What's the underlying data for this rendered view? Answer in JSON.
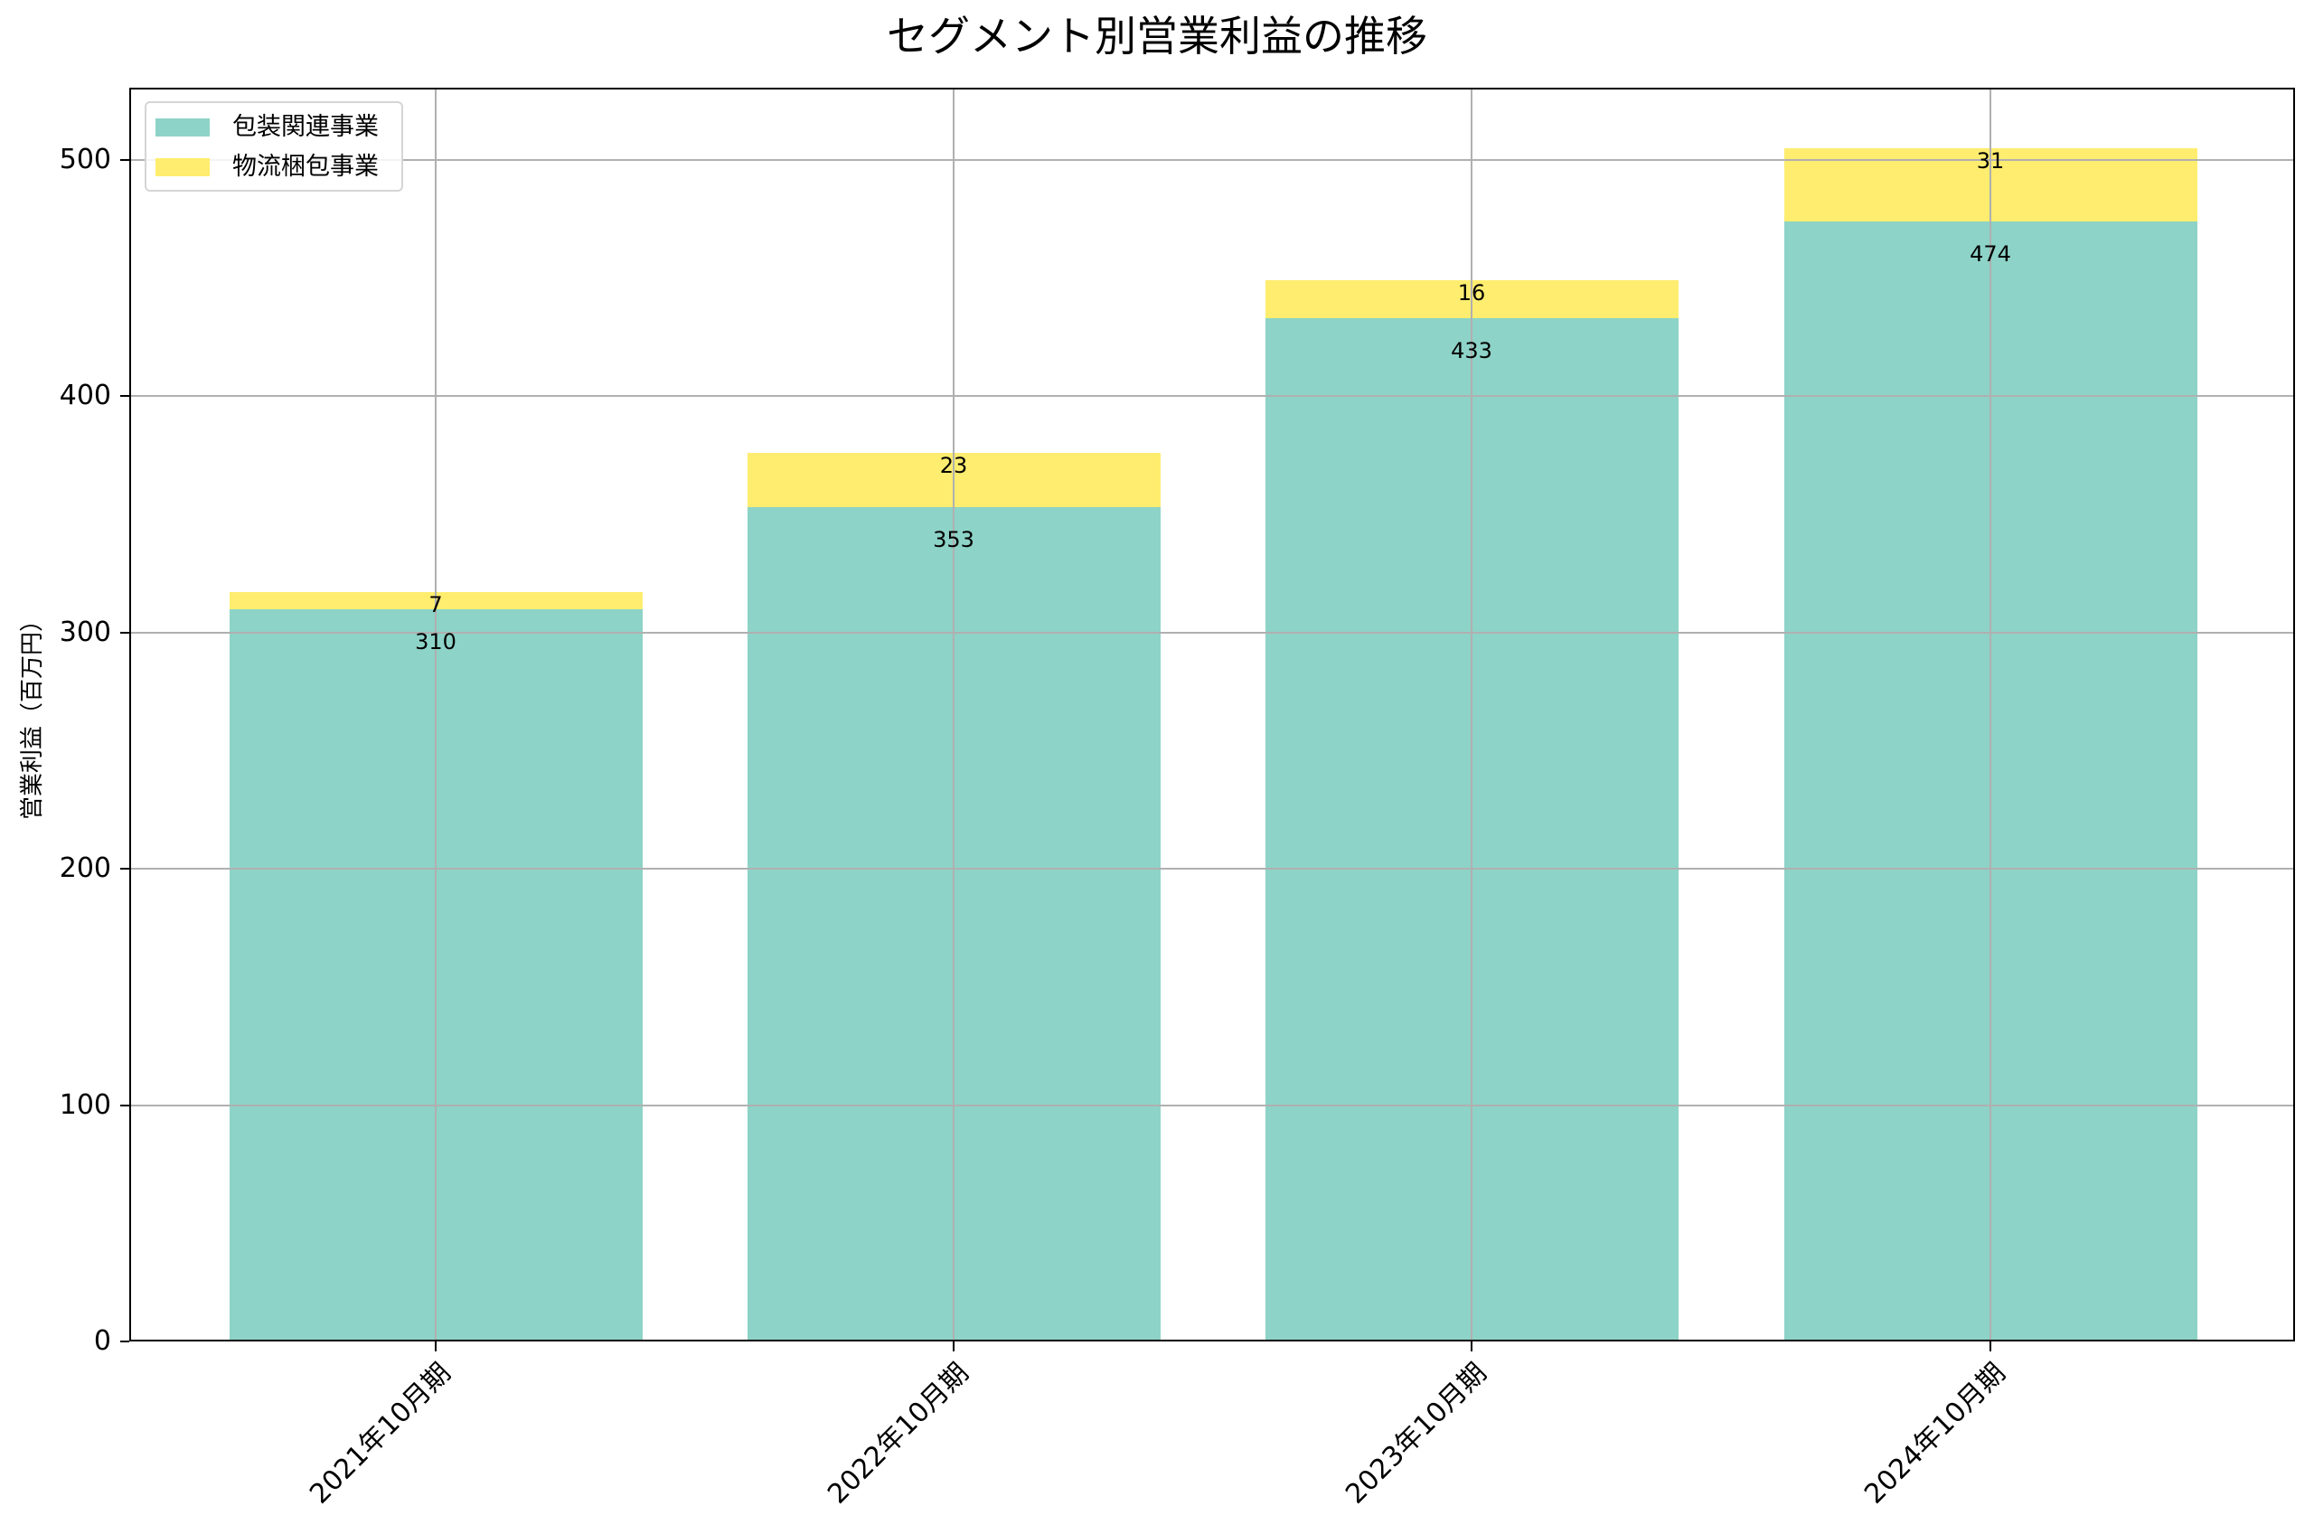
{
  "chart_data": {
    "type": "bar",
    "stacked": true,
    "title": "セグメント別営業利益の推移",
    "xlabel": "",
    "ylabel": "営業利益（百万円）",
    "ylim": [
      0,
      530
    ],
    "yticks": [
      0,
      100,
      200,
      300,
      400,
      500
    ],
    "grid": true,
    "legend_position": "upper left",
    "categories": [
      "2021年10月期",
      "2022年10月期",
      "2023年10月期",
      "2024年10月期"
    ],
    "series": [
      {
        "name": "包装関連事業",
        "color": "#8dd3c7",
        "values": [
          310,
          353,
          433,
          474
        ]
      },
      {
        "name": "物流梱包事業",
        "color": "#ffed6f",
        "values": [
          7,
          23,
          16,
          31
        ]
      }
    ]
  },
  "labels": {
    "title": "セグメント別営業利益の推移",
    "ylabel": "営業利益（百万円）",
    "yticks": [
      "0",
      "100",
      "200",
      "300",
      "400",
      "500"
    ],
    "xticks": [
      "2021年10月期",
      "2022年10月期",
      "2023年10月期",
      "2024年10月期"
    ],
    "legend": [
      "包装関連事業",
      "物流梱包事業"
    ],
    "bar_labels_bottom": [
      "310",
      "353",
      "433",
      "474"
    ],
    "bar_labels_top": [
      "7",
      "23",
      "16",
      "31"
    ]
  },
  "colors": {
    "series1": "#8dd3c7",
    "series2": "#ffed6f",
    "grid": "#b0b0b0"
  }
}
